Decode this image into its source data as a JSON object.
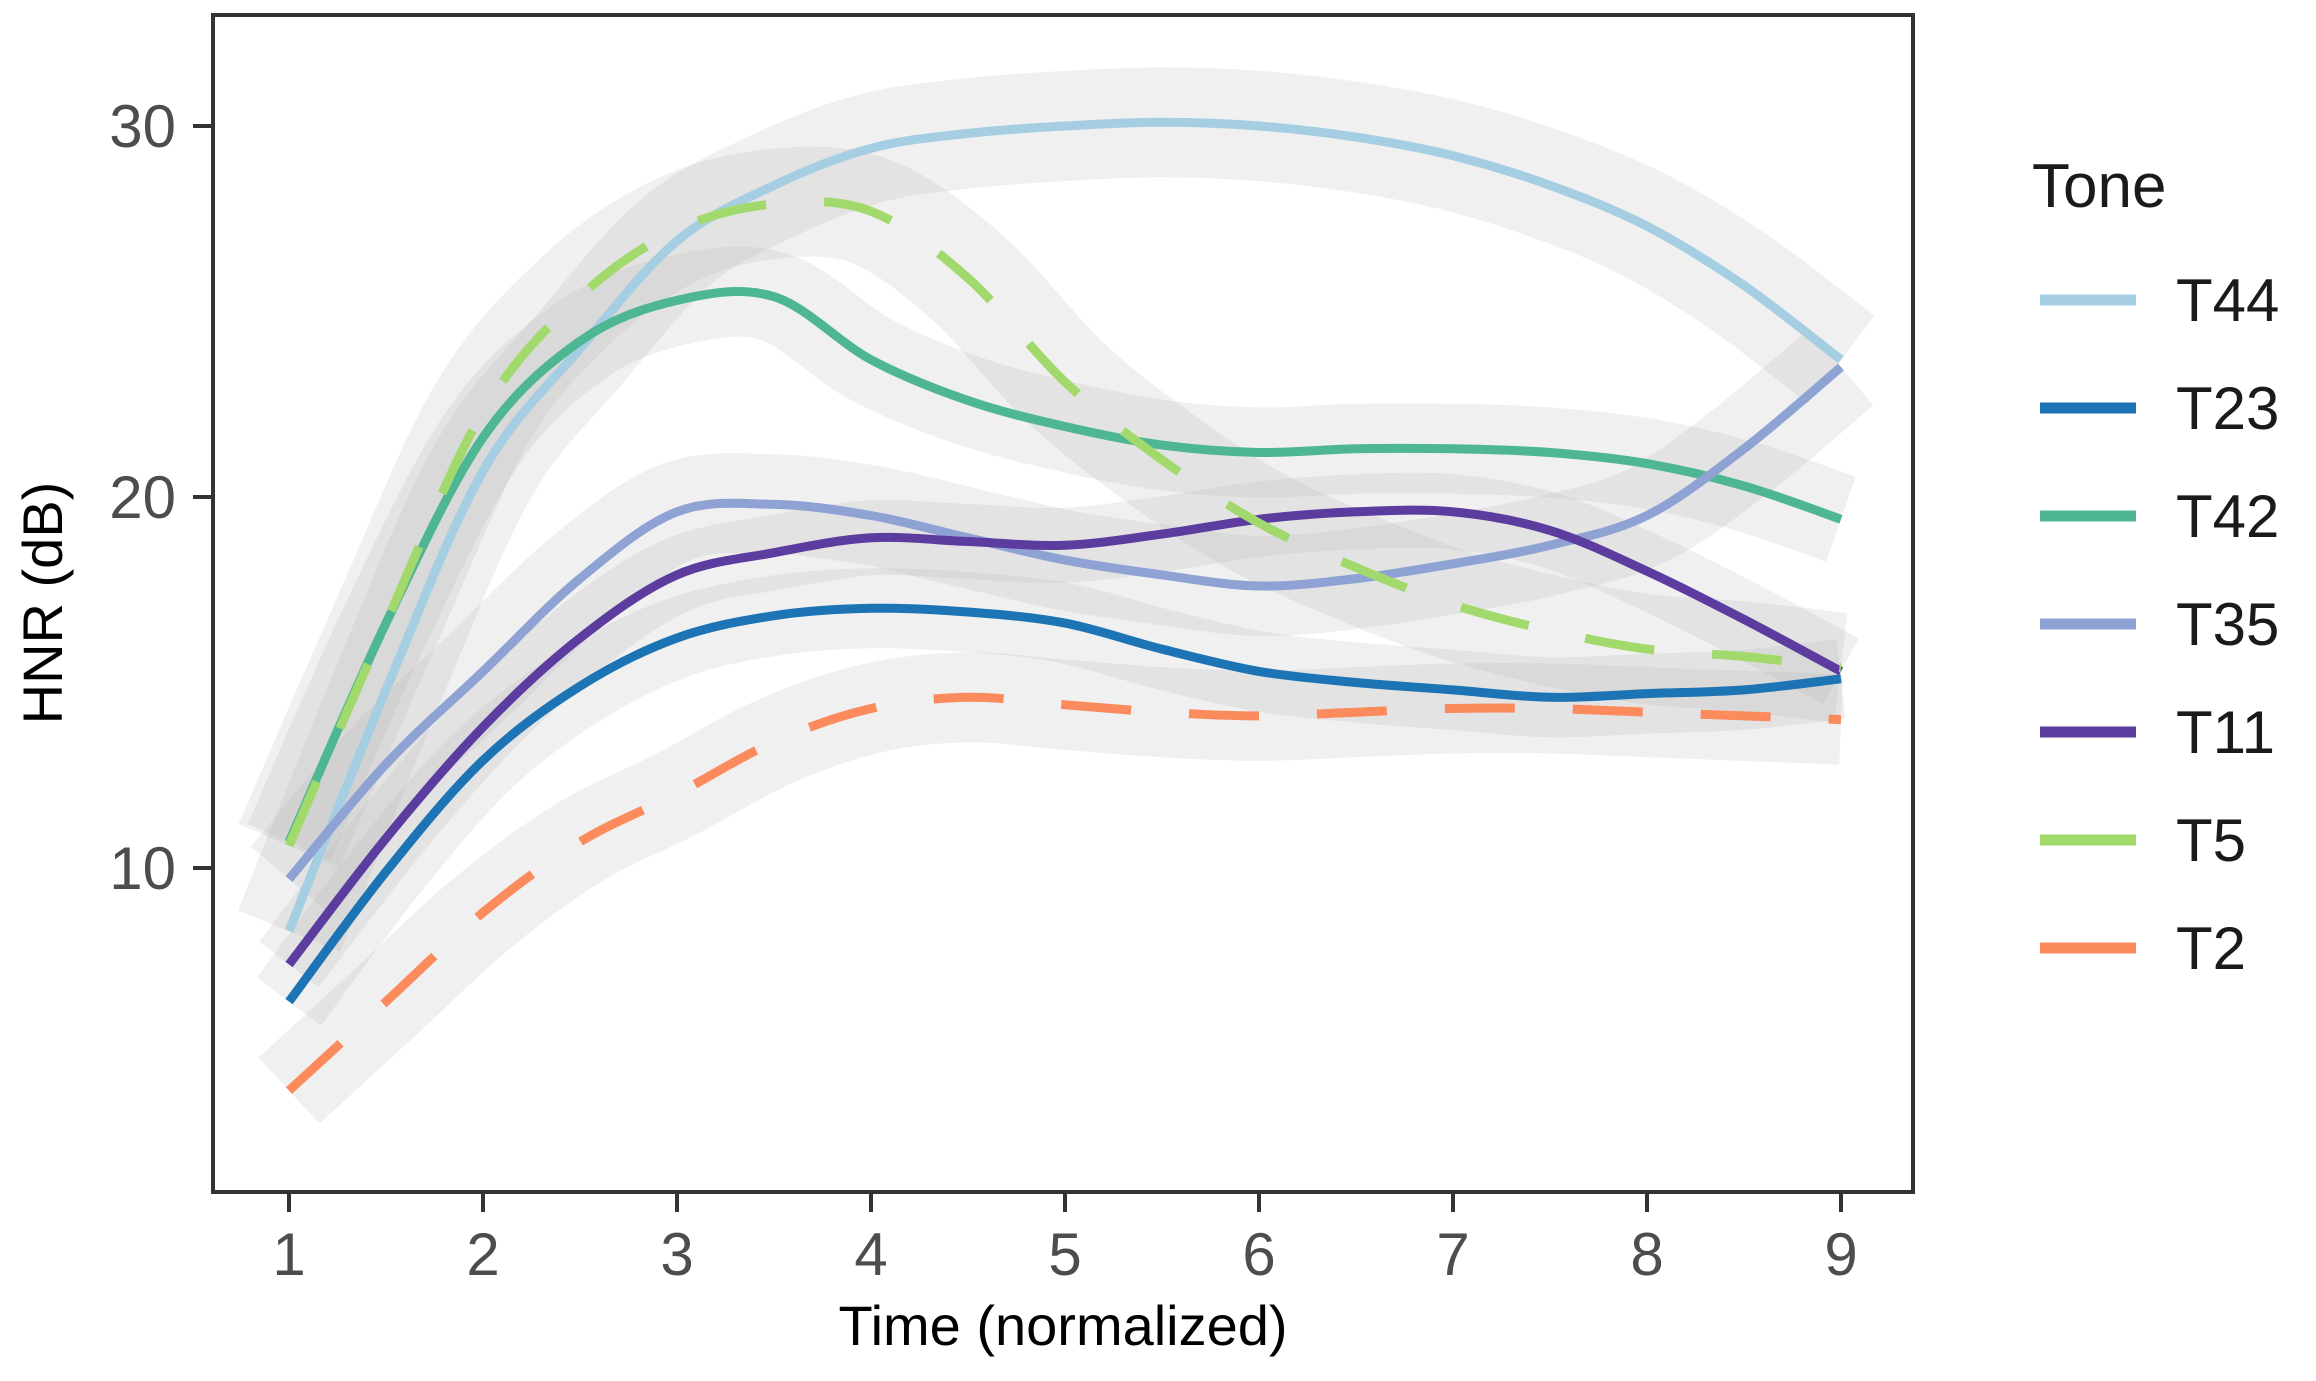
{
  "figure": {
    "background": "#ffffff",
    "axis_text_color": "#4d4d4d",
    "axis_line_color": "#333333"
  },
  "chart_data": {
    "type": "line",
    "title": "",
    "xlabel": "Time (normalized)",
    "ylabel": "HNR (dB)",
    "legend_title": "Tone",
    "legend_position": "right",
    "grid": false,
    "smoothed": true,
    "confidence_bands": true,
    "band_color": "#aaaaaa",
    "band_opacity": 0.18,
    "xticks": [
      1,
      2,
      3,
      4,
      5,
      6,
      7,
      8,
      9
    ],
    "yticks": [
      10,
      20,
      30
    ],
    "xlim": [
      0.6,
      9.4
    ],
    "ylim": [
      1.3,
      33.1
    ],
    "x": [
      1,
      1.5,
      2,
      2.5,
      3,
      3.5,
      4,
      4.5,
      5,
      5.5,
      6,
      6.5,
      7,
      7.5,
      8,
      8.5,
      9
    ],
    "series": [
      {
        "name": "T44",
        "color": "#a5cee3",
        "dash": false,
        "band_width": 110,
        "values": [
          8.3,
          14.8,
          20.7,
          24.0,
          26.9,
          28.4,
          29.4,
          29.8,
          30.0,
          30.1,
          30.0,
          29.7,
          29.2,
          28.4,
          27.3,
          25.7,
          23.7
        ]
      },
      {
        "name": "T23",
        "color": "#1d74b5",
        "dash": false,
        "band_width": 80,
        "values": [
          6.4,
          9.9,
          12.9,
          14.9,
          16.2,
          16.8,
          17.0,
          16.9,
          16.6,
          15.9,
          15.3,
          15.0,
          14.8,
          14.6,
          14.7,
          14.8,
          15.1
        ]
      },
      {
        "name": "T42",
        "color": "#4fb694",
        "dash": false,
        "band_width": 90,
        "values": [
          10.7,
          16.6,
          21.6,
          24.2,
          25.3,
          25.4,
          23.7,
          22.6,
          21.9,
          21.4,
          21.2,
          21.3,
          21.3,
          21.2,
          20.9,
          20.3,
          19.4
        ]
      },
      {
        "name": "T35",
        "color": "#8fa2d4",
        "dash": false,
        "band_width": 100,
        "values": [
          9.7,
          12.8,
          15.3,
          17.8,
          19.6,
          19.8,
          19.5,
          18.9,
          18.3,
          17.9,
          17.6,
          17.8,
          18.2,
          18.7,
          19.5,
          21.3,
          23.5
        ]
      },
      {
        "name": "T11",
        "color": "#5c3c9e",
        "dash": false,
        "band_width": 75,
        "values": [
          7.4,
          10.8,
          13.8,
          16.2,
          17.9,
          18.5,
          18.9,
          18.8,
          18.7,
          19.0,
          19.4,
          19.6,
          19.6,
          19.1,
          18.0,
          16.7,
          15.3
        ]
      },
      {
        "name": "T5",
        "color": "#a2d96d",
        "dash": true,
        "band_width": 110,
        "values": [
          10.6,
          16.6,
          22.3,
          25.4,
          27.2,
          27.9,
          27.7,
          25.9,
          23.1,
          21.0,
          19.3,
          18.1,
          17.1,
          16.4,
          15.9,
          15.7,
          15.4
        ]
      },
      {
        "name": "T2",
        "color": "#fb8a5c",
        "dash": true,
        "band_width": 90,
        "values": [
          4.0,
          6.4,
          8.8,
          10.7,
          12.0,
          13.4,
          14.3,
          14.6,
          14.4,
          14.2,
          14.1,
          14.2,
          14.3,
          14.3,
          14.2,
          14.1,
          14.0
        ]
      }
    ]
  }
}
